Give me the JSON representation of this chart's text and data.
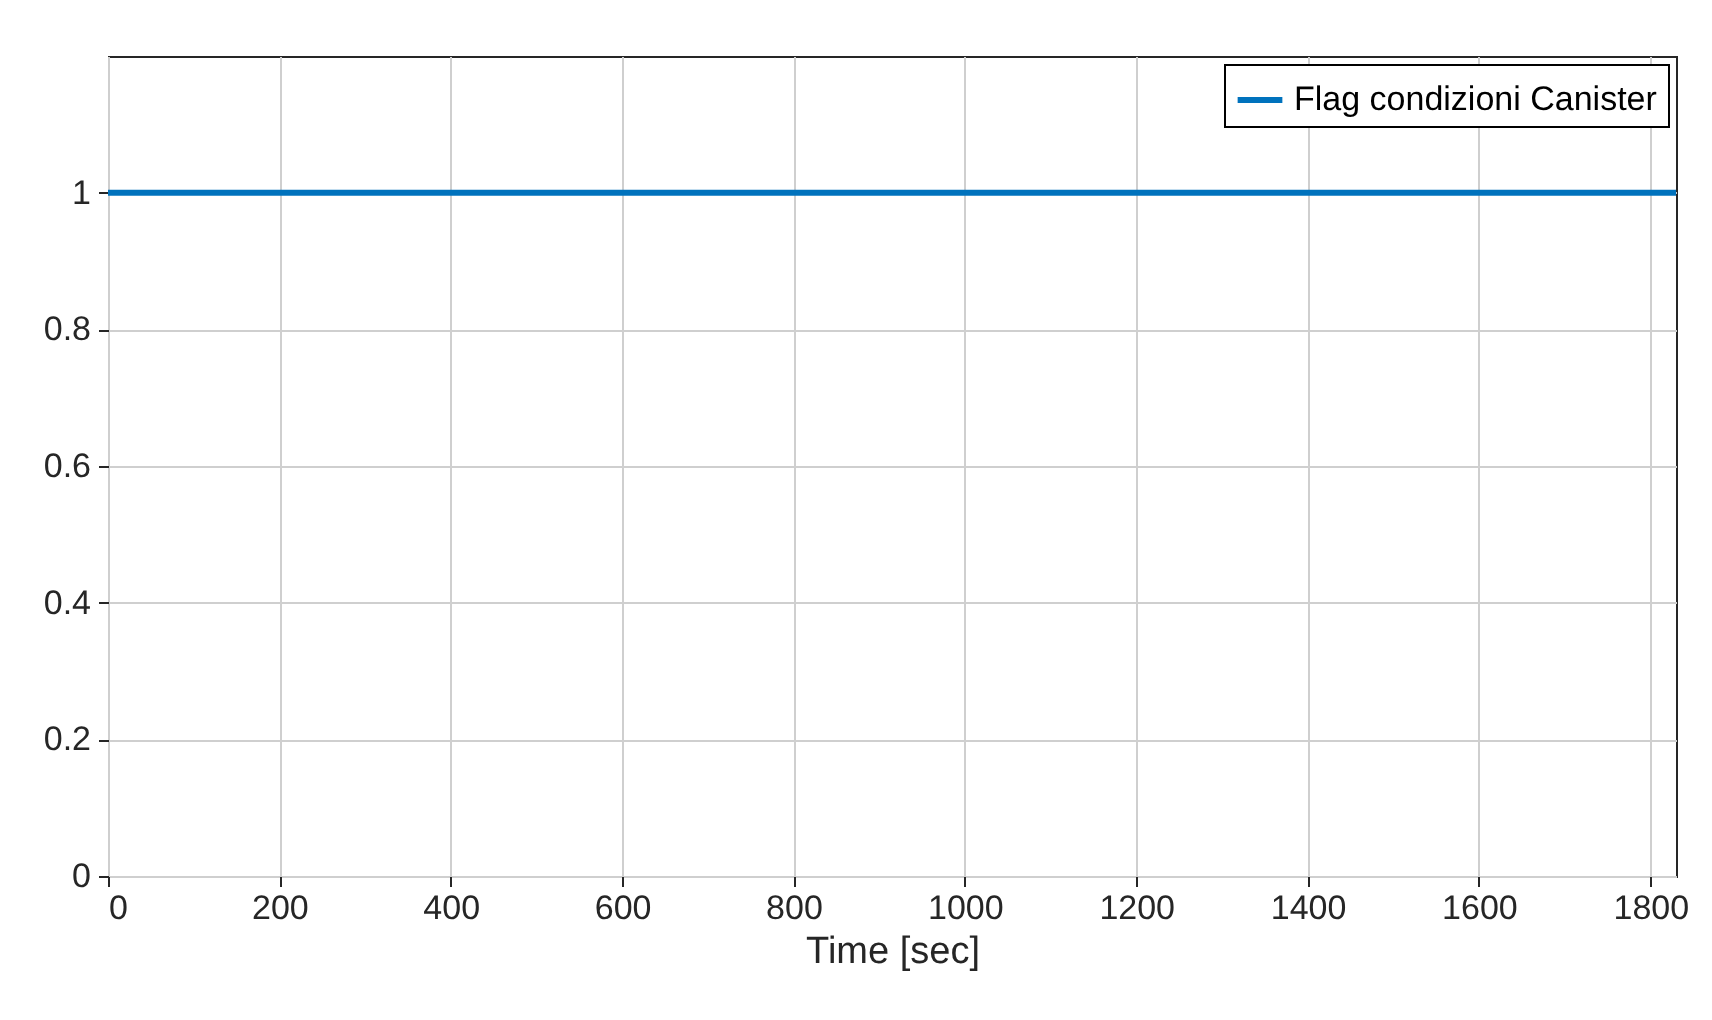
{
  "chart_data": {
    "type": "line",
    "xlabel": "Time [sec]",
    "x": [
      0,
      1830
    ],
    "series": [
      {
        "name": "Flag condizioni Canister",
        "color": "#0072bd",
        "values": [
          1,
          1
        ]
      }
    ],
    "xlim": [
      0,
      1830
    ],
    "xticks": [
      0,
      200,
      400,
      600,
      800,
      1000,
      1200,
      1400,
      1600,
      1800
    ],
    "ylim": [
      0,
      1.2
    ],
    "yticks": [
      0,
      0.2,
      0.4,
      0.6,
      0.8,
      1
    ],
    "grid": true,
    "legend": "top right"
  }
}
